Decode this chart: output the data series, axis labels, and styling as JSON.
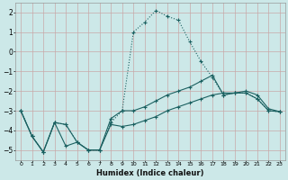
{
  "xlabel": "Humidex (Indice chaleur)",
  "background_color": "#cce8e8",
  "grid_color": "#c8a8a8",
  "line_color": "#1a6060",
  "x_values": [
    0,
    1,
    2,
    3,
    4,
    5,
    6,
    7,
    8,
    9,
    10,
    11,
    12,
    13,
    14,
    15,
    16,
    17,
    18,
    19,
    20,
    21,
    22,
    23
  ],
  "line1": [
    -3.0,
    -4.3,
    -5.1,
    -3.6,
    -4.8,
    -4.6,
    -5.0,
    -5.0,
    -3.7,
    -3.8,
    -3.7,
    -3.5,
    -3.3,
    -3.0,
    -2.8,
    -2.6,
    -2.4,
    -2.2,
    -2.1,
    -2.1,
    -2.0,
    -2.2,
    -2.9,
    -3.05
  ],
  "line2": [
    -3.0,
    -4.3,
    -5.1,
    -3.6,
    -3.7,
    -4.6,
    -5.0,
    -5.0,
    -3.4,
    -3.0,
    -3.0,
    -2.8,
    -2.5,
    -2.2,
    -2.0,
    -1.8,
    -1.5,
    -1.2,
    -2.2,
    -2.1,
    -2.1,
    -2.4,
    -3.0,
    -3.05
  ],
  "line3": [
    -3.0,
    -4.3,
    -5.1,
    -3.6,
    -3.7,
    -4.6,
    -5.0,
    -5.0,
    -3.6,
    -3.0,
    1.0,
    1.5,
    2.1,
    1.8,
    1.6,
    0.5,
    -0.5,
    -1.3,
    -2.2,
    -2.1,
    -2.1,
    -2.4,
    -3.0,
    -3.05
  ],
  "ylim": [
    -5.5,
    2.5
  ],
  "xlim": [
    -0.5,
    23.5
  ],
  "yticks": [
    -5,
    -4,
    -3,
    -2,
    -1,
    0,
    1,
    2
  ],
  "xticks": [
    0,
    1,
    2,
    3,
    4,
    5,
    6,
    7,
    8,
    9,
    10,
    11,
    12,
    13,
    14,
    15,
    16,
    17,
    18,
    19,
    20,
    21,
    22,
    23
  ]
}
